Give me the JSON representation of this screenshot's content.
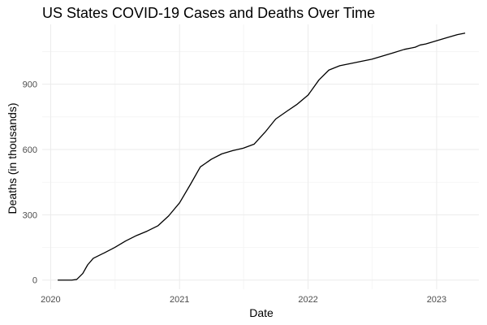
{
  "chart_data": {
    "type": "line",
    "title": "US States COVID-19 Cases and Deaths Over Time",
    "xlabel": "Date",
    "ylabel": "Deaths (in thousands)",
    "x_ticks": [
      "2020",
      "2021",
      "2022",
      "2023"
    ],
    "y_ticks": [
      0,
      300,
      600,
      900
    ],
    "xlim": [
      "2019-12-08",
      "2023-05-01"
    ],
    "ylim": [
      -42,
      1175
    ],
    "grid": true,
    "legend": "none",
    "line_color": "#000000",
    "series": [
      {
        "x": [
          "2020-01-21",
          "2020-03-01",
          "2020-03-15",
          "2020-04-01",
          "2020-04-15",
          "2020-05-01",
          "2020-06-01",
          "2020-07-01",
          "2020-08-01",
          "2020-09-01",
          "2020-10-01",
          "2020-11-01",
          "2020-12-01",
          "2021-01-01",
          "2021-02-01",
          "2021-03-01",
          "2021-04-01",
          "2021-05-01",
          "2021-06-01",
          "2021-07-01",
          "2021-08-01",
          "2021-09-01",
          "2021-10-01",
          "2021-11-01",
          "2021-12-01",
          "2022-01-01",
          "2022-02-01",
          "2022-03-01",
          "2022-04-01",
          "2022-05-01",
          "2022-06-01",
          "2022-07-01",
          "2022-08-01",
          "2022-09-01",
          "2022-10-01",
          "2022-11-01",
          "2022-11-15",
          "2022-12-01",
          "2023-01-01",
          "2023-02-01",
          "2023-03-01",
          "2023-03-23"
        ],
        "y": [
          0,
          0,
          3,
          30,
          70,
          100,
          125,
          150,
          180,
          205,
          225,
          250,
          295,
          355,
          440,
          520,
          555,
          580,
          595,
          606,
          625,
          680,
          740,
          775,
          808,
          850,
          920,
          965,
          985,
          995,
          1005,
          1015,
          1030,
          1045,
          1060,
          1070,
          1080,
          1085,
          1100,
          1115,
          1128,
          1135
        ]
      }
    ]
  }
}
